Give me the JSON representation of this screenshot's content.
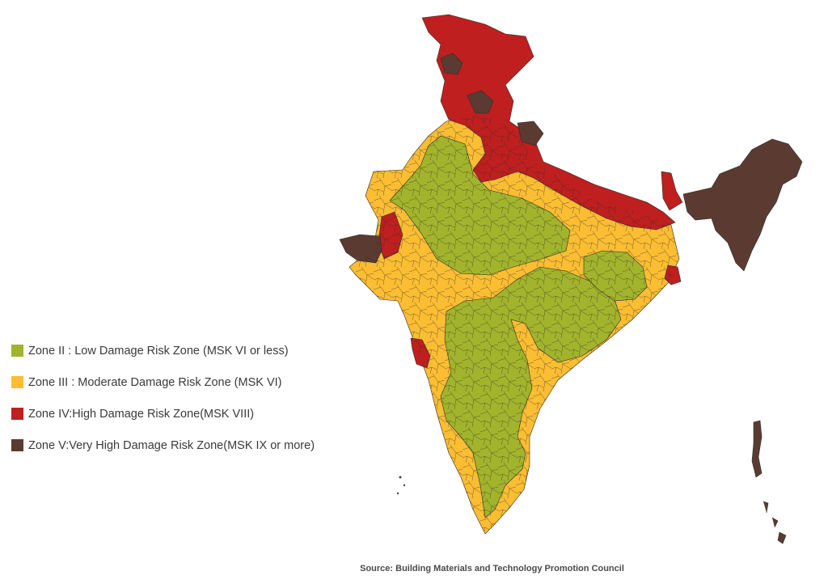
{
  "legend": [
    {
      "label": "Zone II : Low Damage Risk Zone (MSK VI or less)",
      "color": "#a2b42c"
    },
    {
      "label": "Zone III : Moderate Damage Risk Zone (MSK VI)",
      "color": "#fbbd32"
    },
    {
      "label": "Zone IV:High Damage Risk Zone(MSK VIII)",
      "color": "#bf1f1f"
    },
    {
      "label": "Zone V:Very High Damage Risk Zone(MSK IX or more)",
      "color": "#5b3b31"
    }
  ],
  "source": "Source: Building Materials and Technology Promotion Council",
  "colors": {
    "zone2": "#a2b42c",
    "zone3": "#fbbd32",
    "zone4": "#bf1f1f",
    "zone5": "#5b3b31",
    "boundary": "#2b2b2b"
  }
}
